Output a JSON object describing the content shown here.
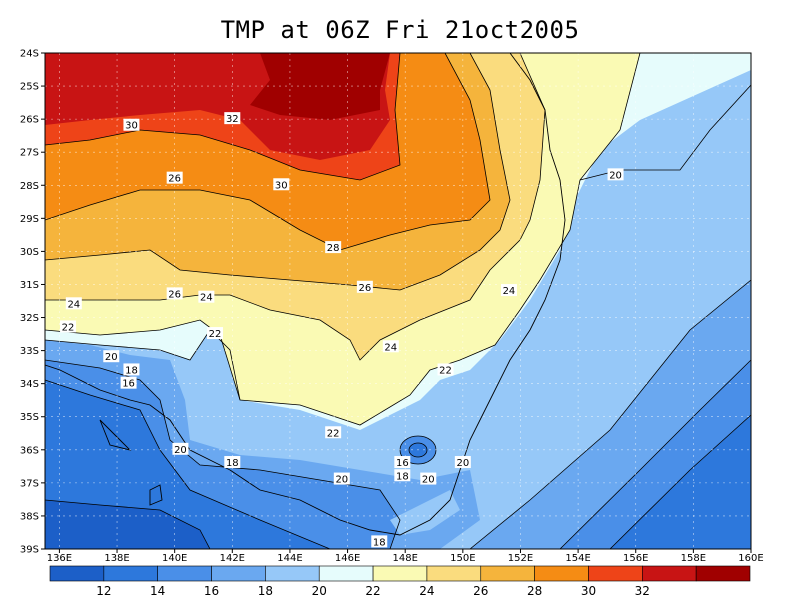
{
  "title": "TMP at 06Z Fri 21oct2005",
  "lat_ticks": [
    "24S",
    "25S",
    "26S",
    "27S",
    "28S",
    "29S",
    "30S",
    "31S",
    "32S",
    "33S",
    "34S",
    "35S",
    "36S",
    "37S",
    "38S",
    "39S"
  ],
  "lon_ticks": [
    "136E",
    "138E",
    "140E",
    "142E",
    "144E",
    "146E",
    "148E",
    "150E",
    "152E",
    "154E",
    "156E",
    "158E",
    "160E"
  ],
  "colorbar": {
    "labels": [
      "12",
      "14",
      "16",
      "18",
      "20",
      "22",
      "24",
      "26",
      "28",
      "30",
      "32"
    ],
    "colors": [
      "#1c5fc8",
      "#2d78dc",
      "#4a8fe8",
      "#6aa8f0",
      "#96c8f8",
      "#e6fcfc",
      "#fafab4",
      "#fadc7e",
      "#f5b43c",
      "#f58c14",
      "#ee4418",
      "#c81414",
      "#a00000"
    ]
  },
  "contour_labels": [
    {
      "text": "30",
      "lon": 138.5,
      "lat": 26.2
    },
    {
      "text": "32",
      "lon": 142.0,
      "lat": 26.0
    },
    {
      "text": "26",
      "lon": 140.0,
      "lat": 27.8
    },
    {
      "text": "30",
      "lon": 143.7,
      "lat": 28.0
    },
    {
      "text": "28",
      "lon": 145.5,
      "lat": 29.9
    },
    {
      "text": "26",
      "lon": 140.0,
      "lat": 31.3
    },
    {
      "text": "24",
      "lon": 141.1,
      "lat": 31.4
    },
    {
      "text": "26",
      "lon": 146.6,
      "lat": 31.1
    },
    {
      "text": "24",
      "lon": 151.6,
      "lat": 31.2
    },
    {
      "text": "24",
      "lon": 136.5,
      "lat": 31.6
    },
    {
      "text": "22",
      "lon": 136.3,
      "lat": 32.3
    },
    {
      "text": "22",
      "lon": 141.4,
      "lat": 32.5
    },
    {
      "text": "20",
      "lon": 137.8,
      "lat": 33.2
    },
    {
      "text": "24",
      "lon": 147.5,
      "lat": 32.9
    },
    {
      "text": "18",
      "lon": 138.5,
      "lat": 33.6
    },
    {
      "text": "22",
      "lon": 149.4,
      "lat": 33.6
    },
    {
      "text": "16",
      "lon": 138.4,
      "lat": 34.0
    },
    {
      "text": "22",
      "lon": 145.5,
      "lat": 35.5
    },
    {
      "text": "20",
      "lon": 140.2,
      "lat": 36.0
    },
    {
      "text": "18",
      "lon": 142.0,
      "lat": 36.4
    },
    {
      "text": "16",
      "lon": 147.9,
      "lat": 36.4
    },
    {
      "text": "18",
      "lon": 147.9,
      "lat": 36.8
    },
    {
      "text": "20",
      "lon": 150.0,
      "lat": 36.4
    },
    {
      "text": "20",
      "lon": 145.8,
      "lat": 36.9
    },
    {
      "text": "20",
      "lon": 148.8,
      "lat": 36.9
    },
    {
      "text": "20",
      "lon": 155.3,
      "lat": 27.7
    },
    {
      "text": "18",
      "lon": 147.1,
      "lat": 38.8
    }
  ]
}
